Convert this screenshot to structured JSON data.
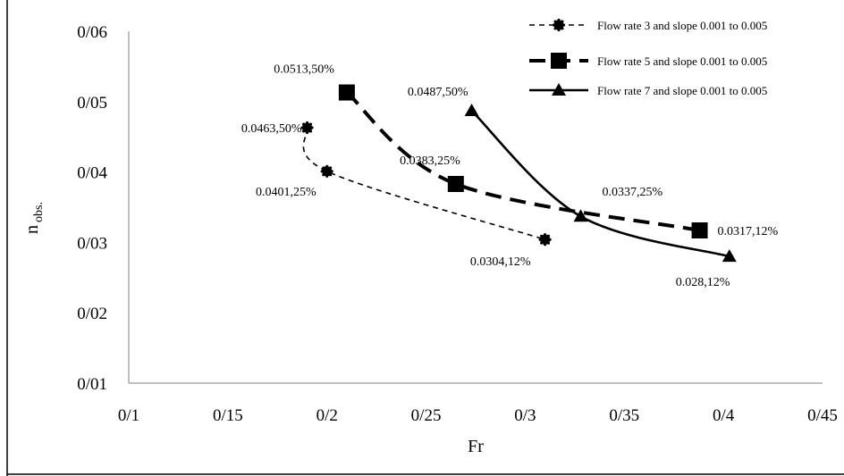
{
  "chart_data": {
    "type": "line",
    "title": "",
    "xlabel": "Fr",
    "ylabel": {
      "main": "n",
      "sub": "obs."
    },
    "xlim": [
      0.1,
      0.45
    ],
    "ylim": [
      0.01,
      0.06
    ],
    "x_ticks": [
      {
        "value": 0.1,
        "label": "0/1"
      },
      {
        "value": 0.15,
        "label": "0/15"
      },
      {
        "value": 0.2,
        "label": "0/2"
      },
      {
        "value": 0.25,
        "label": "0/25"
      },
      {
        "value": 0.3,
        "label": "0/3"
      },
      {
        "value": 0.35,
        "label": "0/35"
      },
      {
        "value": 0.4,
        "label": "0/4"
      },
      {
        "value": 0.45,
        "label": "0/45"
      }
    ],
    "y_ticks": [
      {
        "value": 0.01,
        "label": "0/01"
      },
      {
        "value": 0.02,
        "label": "0/02"
      },
      {
        "value": 0.03,
        "label": "0/03"
      },
      {
        "value": 0.04,
        "label": "0/04"
      },
      {
        "value": 0.05,
        "label": "0/05"
      },
      {
        "value": 0.06,
        "label": "0/06"
      }
    ],
    "grid": false,
    "legend_position": "top-right",
    "series": [
      {
        "name": "Flow rate 3 and slope 0.001 to 0.005",
        "marker": "circle",
        "line": "short-dash",
        "points": [
          {
            "x": 0.19,
            "y": 0.0463,
            "label": "0.0463,50%"
          },
          {
            "x": 0.2,
            "y": 0.0401,
            "label": "0.0401,25%"
          },
          {
            "x": 0.31,
            "y": 0.0304,
            "label": "0.0304,12%"
          }
        ]
      },
      {
        "name": "Flow rate 5 and slope 0.001 to 0.005",
        "marker": "square",
        "line": "long-dash",
        "points": [
          {
            "x": 0.21,
            "y": 0.0513,
            "label": "0.0513,50%"
          },
          {
            "x": 0.265,
            "y": 0.0383,
            "label": "0.0383,25%"
          },
          {
            "x": 0.388,
            "y": 0.0317,
            "label": "0.0317,12%"
          }
        ]
      },
      {
        "name": "Flow rate 7 and slope 0.001 to 0.005",
        "marker": "triangle",
        "line": "solid",
        "points": [
          {
            "x": 0.273,
            "y": 0.0487,
            "label": "0.0487,50%"
          },
          {
            "x": 0.328,
            "y": 0.0337,
            "label": "0.0337,25%"
          },
          {
            "x": 0.403,
            "y": 0.028,
            "label": "0.028,12%"
          }
        ]
      }
    ]
  }
}
